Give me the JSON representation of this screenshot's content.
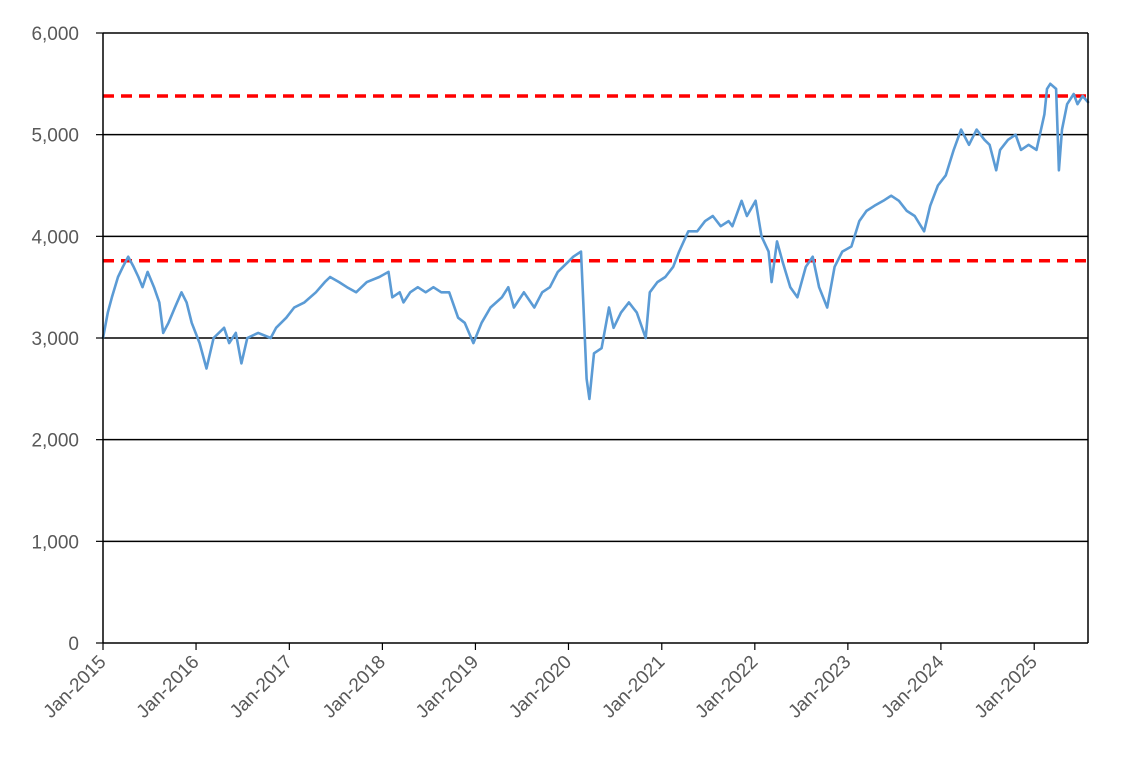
{
  "chart_data": {
    "type": "line",
    "title": "",
    "xlabel": "",
    "ylabel": "",
    "xlim": [
      "2015-01-01",
      "2025-07-31"
    ],
    "ylim": [
      0,
      6000
    ],
    "y_ticks": [
      "0",
      "1,000",
      "2,000",
      "3,000",
      "4,000",
      "5,000",
      "6,000"
    ],
    "y_tick_values": [
      0,
      1000,
      2000,
      3000,
      4000,
      5000,
      6000
    ],
    "x_ticks": [
      "Jan-2015",
      "Jan-2016",
      "Jan-2017",
      "Jan-2018",
      "Jan-2019",
      "Jan-2020",
      "Jan-2021",
      "Jan-2022",
      "Jan-2023",
      "Jan-2024",
      "Jan-2025"
    ],
    "x_tick_dates": [
      "2015-01-01",
      "2016-01-01",
      "2017-01-01",
      "2018-01-01",
      "2019-01-01",
      "2020-01-01",
      "2021-01-01",
      "2022-01-01",
      "2023-01-01",
      "2024-01-01",
      "2025-01-01"
    ],
    "grid": "horizontal",
    "legend": "none",
    "series": [
      {
        "color": "#5b9bd5",
        "points": [
          [
            "2015-01-01",
            3000
          ],
          [
            "2015-01-20",
            3250
          ],
          [
            "2015-02-05",
            3400
          ],
          [
            "2015-03-01",
            3600
          ],
          [
            "2015-03-20",
            3700
          ],
          [
            "2015-04-10",
            3800
          ],
          [
            "2015-05-01",
            3700
          ],
          [
            "2015-05-20",
            3600
          ],
          [
            "2015-06-05",
            3500
          ],
          [
            "2015-06-25",
            3650
          ],
          [
            "2015-07-20",
            3500
          ],
          [
            "2015-08-10",
            3350
          ],
          [
            "2015-08-25",
            3050
          ],
          [
            "2015-09-15",
            3150
          ],
          [
            "2015-10-10",
            3300
          ],
          [
            "2015-11-05",
            3450
          ],
          [
            "2015-11-25",
            3350
          ],
          [
            "2015-12-15",
            3150
          ],
          [
            "2016-01-15",
            2950
          ],
          [
            "2016-02-11",
            2700
          ],
          [
            "2016-03-10",
            3000
          ],
          [
            "2016-04-20",
            3100
          ],
          [
            "2016-05-10",
            2950
          ],
          [
            "2016-06-05",
            3050
          ],
          [
            "2016-06-27",
            2750
          ],
          [
            "2016-07-20",
            3000
          ],
          [
            "2016-09-01",
            3050
          ],
          [
            "2016-10-20",
            3000
          ],
          [
            "2016-11-10",
            3100
          ],
          [
            "2016-12-20",
            3200
          ],
          [
            "2017-01-20",
            3300
          ],
          [
            "2017-03-01",
            3350
          ],
          [
            "2017-04-15",
            3450
          ],
          [
            "2017-05-20",
            3550
          ],
          [
            "2017-06-10",
            3600
          ],
          [
            "2017-07-15",
            3550
          ],
          [
            "2017-08-15",
            3500
          ],
          [
            "2017-09-20",
            3450
          ],
          [
            "2017-11-01",
            3550
          ],
          [
            "2017-12-20",
            3600
          ],
          [
            "2018-01-25",
            3650
          ],
          [
            "2018-02-09",
            3400
          ],
          [
            "2018-03-10",
            3450
          ],
          [
            "2018-03-25",
            3350
          ],
          [
            "2018-04-20",
            3450
          ],
          [
            "2018-05-20",
            3500
          ],
          [
            "2018-06-20",
            3450
          ],
          [
            "2018-07-20",
            3500
          ],
          [
            "2018-08-20",
            3450
          ],
          [
            "2018-09-20",
            3450
          ],
          [
            "2018-10-25",
            3200
          ],
          [
            "2018-11-20",
            3150
          ],
          [
            "2018-12-24",
            2950
          ],
          [
            "2019-01-25",
            3150
          ],
          [
            "2019-03-01",
            3300
          ],
          [
            "2019-04-15",
            3400
          ],
          [
            "2019-05-10",
            3500
          ],
          [
            "2019-06-01",
            3300
          ],
          [
            "2019-07-10",
            3450
          ],
          [
            "2019-08-20",
            3300
          ],
          [
            "2019-09-20",
            3450
          ],
          [
            "2019-10-20",
            3500
          ],
          [
            "2019-11-20",
            3650
          ],
          [
            "2019-12-31",
            3750
          ],
          [
            "2020-01-20",
            3800
          ],
          [
            "2020-02-19",
            3850
          ],
          [
            "2020-02-28",
            3350
          ],
          [
            "2020-03-12",
            2600
          ],
          [
            "2020-03-23",
            2400
          ],
          [
            "2020-04-10",
            2850
          ],
          [
            "2020-05-10",
            2900
          ],
          [
            "2020-06-08",
            3300
          ],
          [
            "2020-06-26",
            3100
          ],
          [
            "2020-07-25",
            3250
          ],
          [
            "2020-08-25",
            3350
          ],
          [
            "2020-09-25",
            3250
          ],
          [
            "2020-10-30",
            3000
          ],
          [
            "2020-11-15",
            3450
          ],
          [
            "2020-12-15",
            3550
          ],
          [
            "2021-01-15",
            3600
          ],
          [
            "2021-02-15",
            3700
          ],
          [
            "2021-03-10",
            3850
          ],
          [
            "2021-04-15",
            4050
          ],
          [
            "2021-05-20",
            4050
          ],
          [
            "2021-06-20",
            4150
          ],
          [
            "2021-07-20",
            4200
          ],
          [
            "2021-08-20",
            4100
          ],
          [
            "2021-09-20",
            4150
          ],
          [
            "2021-10-05",
            4100
          ],
          [
            "2021-11-10",
            4350
          ],
          [
            "2021-12-01",
            4200
          ],
          [
            "2022-01-04",
            4350
          ],
          [
            "2022-01-27",
            4000
          ],
          [
            "2022-02-24",
            3850
          ],
          [
            "2022-03-08",
            3550
          ],
          [
            "2022-03-29",
            3950
          ],
          [
            "2022-04-20",
            3750
          ],
          [
            "2022-05-20",
            3500
          ],
          [
            "2022-06-17",
            3400
          ],
          [
            "2022-07-20",
            3700
          ],
          [
            "2022-08-16",
            3800
          ],
          [
            "2022-09-10",
            3500
          ],
          [
            "2022-10-12",
            3300
          ],
          [
            "2022-11-10",
            3700
          ],
          [
            "2022-12-10",
            3850
          ],
          [
            "2023-01-15",
            3900
          ],
          [
            "2023-02-15",
            4150
          ],
          [
            "2023-03-15",
            4250
          ],
          [
            "2023-04-15",
            4300
          ],
          [
            "2023-05-20",
            4350
          ],
          [
            "2023-06-20",
            4400
          ],
          [
            "2023-07-20",
            4350
          ],
          [
            "2023-08-20",
            4250
          ],
          [
            "2023-09-20",
            4200
          ],
          [
            "2023-10-27",
            4050
          ],
          [
            "2023-11-20",
            4300
          ],
          [
            "2023-12-20",
            4500
          ],
          [
            "2024-01-20",
            4600
          ],
          [
            "2024-02-20",
            4850
          ],
          [
            "2024-03-20",
            5050
          ],
          [
            "2024-04-20",
            4900
          ],
          [
            "2024-05-20",
            5050
          ],
          [
            "2024-06-20",
            4950
          ],
          [
            "2024-07-10",
            4900
          ],
          [
            "2024-08-05",
            4650
          ],
          [
            "2024-08-20",
            4850
          ],
          [
            "2024-09-20",
            4950
          ],
          [
            "2024-10-20",
            5000
          ],
          [
            "2024-11-10",
            4850
          ],
          [
            "2024-12-10",
            4900
          ],
          [
            "2025-01-10",
            4850
          ],
          [
            "2025-02-10",
            5200
          ],
          [
            "2025-02-20",
            5450
          ],
          [
            "2025-03-05",
            5500
          ],
          [
            "2025-03-28",
            5450
          ],
          [
            "2025-04-03",
            5000
          ],
          [
            "2025-04-08",
            4650
          ],
          [
            "2025-04-20",
            5050
          ],
          [
            "2025-05-10",
            5300
          ],
          [
            "2025-06-05",
            5400
          ],
          [
            "2025-06-20",
            5300
          ],
          [
            "2025-07-10",
            5380
          ],
          [
            "2025-07-31",
            5320
          ]
        ]
      }
    ],
    "reference_lines": [
      {
        "value": 3760,
        "color": "#ff0000",
        "style": "dashed"
      },
      {
        "value": 5380,
        "color": "#ff0000",
        "style": "dashed"
      }
    ]
  }
}
